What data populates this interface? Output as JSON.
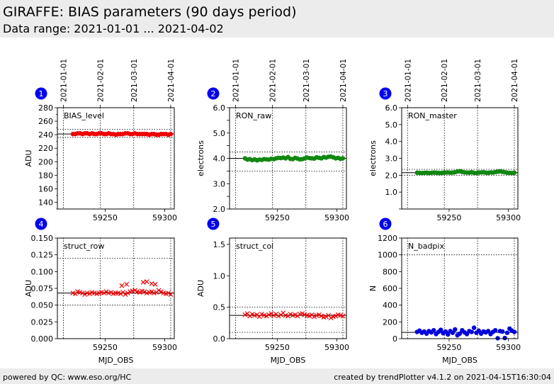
{
  "header": {
    "title": "GIRAFFE: BIAS parameters (90 days period)",
    "subtitle": "Data range: 2021-01-01 ... 2021-04-02"
  },
  "footer": {
    "left": "powered by QC: www.eso.org/HC",
    "right": "created by trendPlotter v4.1.2 on 2021-04-15T16:30:04"
  },
  "date_ticks": [
    {
      "label": "2021-01-01",
      "mjd": 59215
    },
    {
      "label": "2021-02-01",
      "mjd": 59246
    },
    {
      "label": "2021-03-01",
      "mjd": 59274
    },
    {
      "label": "2021-04-01",
      "mjd": 59305
    }
  ],
  "colors": {
    "red": "#ee0000",
    "green": "#118811",
    "blue": "#0000dd",
    "badge": "#0000ee"
  },
  "chart_data": [
    {
      "id": 1,
      "badge": "1",
      "type": "scatter",
      "marker": "circle",
      "color": "#ee0000",
      "panel_label": "BIAS_level",
      "ylabel": "ADU",
      "xlabel": "",
      "xlim": [
        59210,
        59308
      ],
      "ylim": [
        130,
        280
      ],
      "yticks": [
        140,
        160,
        180,
        200,
        220,
        240,
        260,
        280
      ],
      "ytick_labels": [
        "140",
        "160",
        "180",
        "200",
        "220",
        "240",
        "260",
        "280"
      ],
      "minor_yticks": true,
      "xticks": [
        59250,
        59300
      ],
      "xtick_labels": [
        "59250",
        "59300"
      ],
      "ref_line": 241,
      "ref_band": [
        236,
        248
      ],
      "x": [
        59223,
        59225,
        59227,
        59229,
        59231,
        59233,
        59235,
        59237,
        59239,
        59241,
        59243,
        59245,
        59247,
        59249,
        59251,
        59253,
        59255,
        59257,
        59259,
        59261,
        59263,
        59265,
        59267,
        59269,
        59271,
        59273,
        59275,
        59277,
        59279,
        59281,
        59283,
        59285,
        59287,
        59289,
        59291,
        59293,
        59295,
        59297,
        59299,
        59301,
        59303,
        59305
      ],
      "y": [
        241,
        241,
        242,
        242,
        241,
        242,
        242,
        241,
        242,
        241,
        241,
        242,
        242,
        241,
        241,
        242,
        241,
        241,
        240,
        241,
        241,
        241,
        242,
        242,
        241,
        241,
        242,
        241,
        241,
        241,
        241,
        241,
        240,
        241,
        241,
        240,
        240,
        241,
        241,
        241,
        240,
        241
      ]
    },
    {
      "id": 2,
      "badge": "2",
      "type": "scatter",
      "marker": "circle",
      "color": "#118811",
      "panel_label": "RON_raw",
      "ylabel": "electrons",
      "xlabel": "",
      "xlim": [
        59210,
        59308
      ],
      "ylim": [
        2.0,
        6.0
      ],
      "yticks": [
        2.0,
        2.5,
        3.0,
        3.5,
        4.0,
        4.5,
        5.0,
        5.5,
        6.0
      ],
      "ytick_labels": [
        "2.0",
        "",
        "3.0",
        "",
        "4.0",
        "",
        "5.0",
        "",
        "6.0"
      ],
      "minor_yticks": false,
      "xticks": [
        59250,
        59300
      ],
      "xtick_labels": [
        "59250",
        "59300"
      ],
      "ref_line": 4.0,
      "ref_band": [
        3.5,
        4.25
      ],
      "x": [
        59223,
        59225,
        59227,
        59229,
        59231,
        59233,
        59235,
        59237,
        59239,
        59241,
        59243,
        59245,
        59247,
        59249,
        59251,
        59253,
        59255,
        59257,
        59259,
        59261,
        59263,
        59265,
        59267,
        59269,
        59271,
        59273,
        59275,
        59277,
        59279,
        59281,
        59283,
        59285,
        59287,
        59289,
        59291,
        59293,
        59295,
        59297,
        59299,
        59301,
        59303,
        59305
      ],
      "y": [
        4.0,
        3.95,
        3.97,
        3.93,
        3.96,
        3.92,
        3.95,
        3.94,
        3.97,
        3.96,
        3.95,
        3.98,
        3.97,
        4.0,
        4.02,
        4.01,
        4.03,
        4.0,
        4.05,
        3.98,
        3.97,
        4.02,
        3.99,
        3.96,
        3.97,
        4.0,
        4.03,
        4.01,
        4.0,
        3.99,
        4.04,
        4.02,
        4.0,
        4.05,
        4.03,
        4.06,
        4.07,
        4.04,
        4.0,
        4.02,
        3.98,
        4.0
      ]
    },
    {
      "id": 3,
      "badge": "3",
      "type": "scatter",
      "marker": "circle",
      "color": "#118811",
      "panel_label": "RON_master",
      "ylabel": "electrons",
      "xlabel": "",
      "xlim": [
        59210,
        59308
      ],
      "ylim": [
        0.0,
        6.0
      ],
      "yticks": [
        0.0,
        1.0,
        2.0,
        3.0,
        4.0,
        5.0,
        6.0
      ],
      "ytick_labels": [
        "",
        "1.0",
        "2.0",
        "3.0",
        "4.0",
        "5.0",
        "6.0"
      ],
      "minor_yticks": false,
      "xticks": [
        59250,
        59300
      ],
      "xtick_labels": [
        "59250",
        "59300"
      ],
      "ref_line": 2.15,
      "ref_band": [
        2.0,
        2.35
      ],
      "x": [
        59223,
        59225,
        59227,
        59229,
        59231,
        59233,
        59235,
        59237,
        59239,
        59241,
        59243,
        59245,
        59247,
        59249,
        59251,
        59253,
        59255,
        59257,
        59259,
        59261,
        59263,
        59265,
        59267,
        59269,
        59271,
        59273,
        59275,
        59277,
        59279,
        59281,
        59283,
        59285,
        59287,
        59289,
        59291,
        59293,
        59295,
        59297,
        59299,
        59301,
        59303,
        59305
      ],
      "y": [
        2.15,
        2.14,
        2.13,
        2.14,
        2.15,
        2.13,
        2.14,
        2.16,
        2.15,
        2.14,
        2.13,
        2.15,
        2.16,
        2.17,
        2.15,
        2.16,
        2.18,
        2.22,
        2.24,
        2.2,
        2.17,
        2.16,
        2.15,
        2.18,
        2.14,
        2.13,
        2.16,
        2.17,
        2.18,
        2.15,
        2.14,
        2.17,
        2.16,
        2.19,
        2.21,
        2.23,
        2.2,
        2.18,
        2.15,
        2.14,
        2.13,
        2.15
      ]
    },
    {
      "id": 4,
      "badge": "4",
      "type": "scatter",
      "marker": "cross",
      "color": "#ee0000",
      "panel_label": "struct_row",
      "ylabel": "ADU",
      "xlabel": "MJD_OBS",
      "xlim": [
        59210,
        59308
      ],
      "ylim": [
        0.0,
        0.15
      ],
      "yticks": [
        0.0,
        0.025,
        0.05,
        0.075,
        0.1,
        0.125,
        0.15
      ],
      "ytick_labels": [
        "0.000",
        "0.025",
        "0.050",
        "0.075",
        "0.100",
        "0.125",
        "0.150"
      ],
      "minor_yticks": false,
      "xticks": [
        59250,
        59300
      ],
      "xtick_labels": [
        "59250",
        "59300"
      ],
      "ref_line": 0.068,
      "ref_band": [
        0.05,
        0.12
      ],
      "x": [
        59223,
        59225,
        59227,
        59229,
        59231,
        59233,
        59235,
        59237,
        59239,
        59241,
        59243,
        59245,
        59247,
        59249,
        59251,
        59253,
        59255,
        59257,
        59259,
        59261,
        59263,
        59265,
        59267,
        59269,
        59271,
        59273,
        59275,
        59277,
        59279,
        59281,
        59283,
        59285,
        59287,
        59289,
        59291,
        59293,
        59295,
        59297,
        59299,
        59301,
        59303,
        59305,
        59264,
        59268,
        59282,
        59285,
        59289,
        59292
      ],
      "y": [
        0.068,
        0.067,
        0.07,
        0.069,
        0.068,
        0.066,
        0.068,
        0.067,
        0.069,
        0.068,
        0.067,
        0.068,
        0.069,
        0.068,
        0.07,
        0.068,
        0.069,
        0.067,
        0.068,
        0.068,
        0.067,
        0.069,
        0.066,
        0.068,
        0.07,
        0.071,
        0.072,
        0.07,
        0.069,
        0.071,
        0.07,
        0.068,
        0.069,
        0.07,
        0.068,
        0.069,
        0.072,
        0.07,
        0.068,
        0.067,
        0.068,
        0.066,
        0.079,
        0.081,
        0.084,
        0.085,
        0.082,
        0.081
      ]
    },
    {
      "id": 5,
      "badge": "5",
      "type": "scatter",
      "marker": "cross",
      "color": "#ee0000",
      "panel_label": "struct_col",
      "ylabel": "ADU",
      "xlabel": "MJD_OBS",
      "xlim": [
        59210,
        59308
      ],
      "ylim": [
        0.0,
        1.6
      ],
      "yticks": [
        0.0,
        0.5,
        1.0,
        1.5
      ],
      "ytick_labels": [
        "0.0",
        "0.5",
        "1.0",
        "1.5"
      ],
      "minor_yticks": false,
      "xticks": [
        59250,
        59300
      ],
      "xtick_labels": [
        "59250",
        "59300"
      ],
      "ref_line": 0.37,
      "ref_band": [
        0.1,
        0.5
      ],
      "x": [
        59223,
        59225,
        59227,
        59229,
        59231,
        59233,
        59235,
        59237,
        59239,
        59241,
        59243,
        59245,
        59247,
        59249,
        59251,
        59253,
        59255,
        59257,
        59259,
        59261,
        59263,
        59265,
        59267,
        59269,
        59271,
        59273,
        59275,
        59277,
        59279,
        59281,
        59283,
        59285,
        59287,
        59289,
        59291,
        59293,
        59295,
        59297,
        59299,
        59301,
        59303,
        59305
      ],
      "y": [
        0.38,
        0.4,
        0.36,
        0.39,
        0.37,
        0.38,
        0.35,
        0.39,
        0.37,
        0.36,
        0.38,
        0.4,
        0.37,
        0.39,
        0.36,
        0.38,
        0.41,
        0.37,
        0.36,
        0.39,
        0.37,
        0.38,
        0.36,
        0.39,
        0.4,
        0.38,
        0.37,
        0.36,
        0.38,
        0.35,
        0.37,
        0.38,
        0.36,
        0.34,
        0.35,
        0.37,
        0.33,
        0.35,
        0.36,
        0.38,
        0.37,
        0.36
      ]
    },
    {
      "id": 6,
      "badge": "6",
      "type": "scatter",
      "marker": "circle",
      "color": "#0000dd",
      "panel_label": "N_badpix",
      "ylabel": "N",
      "xlabel": "MJD_OBS",
      "xlim": [
        59210,
        59308
      ],
      "ylim": [
        0,
        1200
      ],
      "yticks": [
        0,
        200,
        400,
        600,
        800,
        1000,
        1200
      ],
      "ytick_labels": [
        "0",
        "200",
        "400",
        "600",
        "800",
        "1000",
        "1200"
      ],
      "minor_yticks": false,
      "xticks": [
        59250,
        59300
      ],
      "xtick_labels": [
        "59250",
        "59300"
      ],
      "ref_line": 75,
      "ref_band": [
        1000
      ],
      "x": [
        59223,
        59225,
        59227,
        59229,
        59231,
        59233,
        59235,
        59237,
        59239,
        59241,
        59243,
        59245,
        59247,
        59249,
        59251,
        59253,
        59255,
        59257,
        59259,
        59261,
        59263,
        59265,
        59267,
        59269,
        59271,
        59273,
        59275,
        59277,
        59279,
        59281,
        59283,
        59285,
        59287,
        59289,
        59291,
        59293,
        59295,
        59297,
        59299,
        59301,
        59303,
        59305
      ],
      "y": [
        80,
        95,
        70,
        85,
        60,
        90,
        75,
        100,
        55,
        80,
        105,
        65,
        85,
        50,
        90,
        70,
        110,
        40,
        60,
        100,
        75,
        55,
        90,
        80,
        130,
        70,
        95,
        60,
        85,
        75,
        90,
        55,
        80,
        100,
        5,
        90,
        85,
        8,
        70,
        120,
        95,
        80
      ]
    }
  ]
}
